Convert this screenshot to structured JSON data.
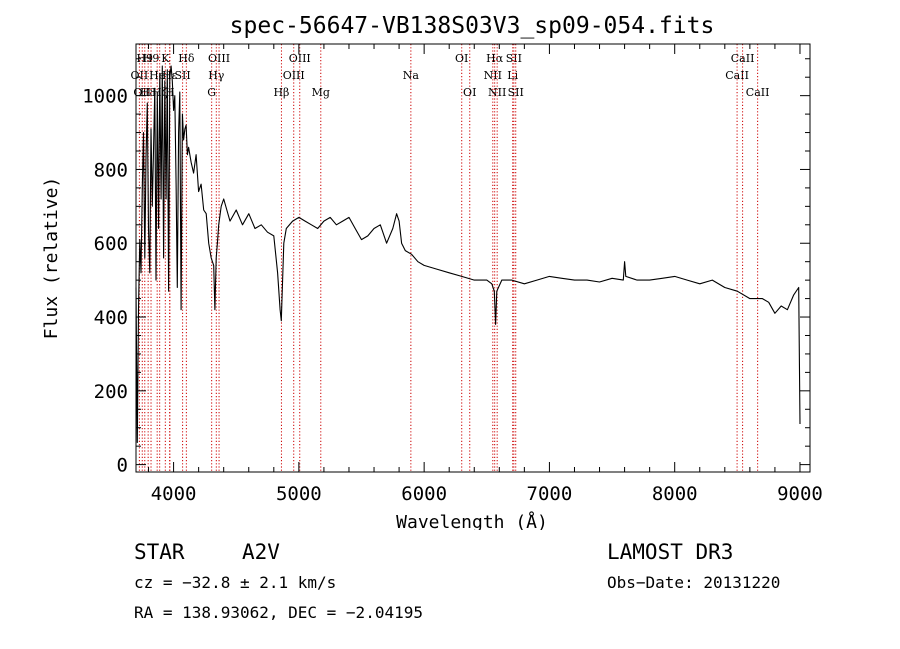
{
  "chart_data": {
    "type": "line",
    "title": "spec-56647-VB138S03V3_sp09-054.fits",
    "xlabel": "Wavelength (Å)",
    "ylabel": "Flux (relative)",
    "xlim": [
      3700,
      9080
    ],
    "ylim": [
      -20,
      1140
    ],
    "xticks": [
      4000,
      5000,
      6000,
      7000,
      8000,
      9000
    ],
    "yticks": [
      0,
      200,
      400,
      600,
      800,
      1000
    ],
    "series": [
      {
        "name": "flux",
        "x": [
          3700,
          3710,
          3720,
          3730,
          3740,
          3750,
          3760,
          3770,
          3780,
          3790,
          3800,
          3810,
          3820,
          3830,
          3840,
          3850,
          3860,
          3870,
          3880,
          3890,
          3900,
          3910,
          3920,
          3930,
          3940,
          3950,
          3960,
          3970,
          3980,
          3990,
          4000,
          4010,
          4020,
          4030,
          4040,
          4050,
          4060,
          4070,
          4080,
          4090,
          4100,
          4110,
          4120,
          4140,
          4160,
          4180,
          4200,
          4220,
          4240,
          4260,
          4280,
          4300,
          4320,
          4330,
          4340,
          4350,
          4360,
          4380,
          4400,
          4450,
          4500,
          4550,
          4600,
          4650,
          4700,
          4750,
          4800,
          4830,
          4850,
          4860,
          4870,
          4880,
          4900,
          4950,
          5000,
          5050,
          5100,
          5150,
          5200,
          5250,
          5300,
          5350,
          5400,
          5450,
          5500,
          5550,
          5600,
          5650,
          5700,
          5750,
          5780,
          5800,
          5820,
          5850,
          5900,
          5950,
          6000,
          6100,
          6200,
          6300,
          6400,
          6500,
          6540,
          6560,
          6570,
          6580,
          6620,
          6700,
          6800,
          6900,
          7000,
          7100,
          7200,
          7300,
          7400,
          7500,
          7590,
          7600,
          7610,
          7700,
          7800,
          7900,
          8000,
          8100,
          8200,
          8300,
          8400,
          8500,
          8600,
          8700,
          8750,
          8800,
          8850,
          8900,
          8950,
          8990,
          9000
        ],
        "y": [
          480,
          60,
          420,
          610,
          520,
          750,
          900,
          560,
          830,
          980,
          640,
          520,
          910,
          700,
          850,
          1020,
          500,
          1010,
          640,
          1060,
          720,
          1080,
          560,
          1040,
          720,
          1070,
          470,
          1050,
          1080,
          1040,
          960,
          1000,
          760,
          480,
          900,
          1010,
          420,
          950,
          880,
          910,
          920,
          840,
          860,
          820,
          790,
          840,
          740,
          760,
          690,
          680,
          600,
          560,
          540,
          420,
          560,
          600,
          650,
          700,
          720,
          660,
          690,
          650,
          680,
          640,
          650,
          630,
          620,
          520,
          420,
          390,
          500,
          600,
          640,
          660,
          670,
          660,
          650,
          640,
          660,
          670,
          650,
          660,
          670,
          640,
          610,
          620,
          640,
          650,
          600,
          640,
          680,
          660,
          600,
          580,
          570,
          550,
          540,
          530,
          520,
          510,
          500,
          500,
          490,
          470,
          380,
          470,
          500,
          500,
          490,
          500,
          510,
          505,
          500,
          500,
          495,
          505,
          500,
          550,
          510,
          500,
          500,
          505,
          510,
          500,
          490,
          500,
          480,
          470,
          450,
          450,
          440,
          410,
          430,
          420,
          460,
          480,
          110
        ]
      }
    ],
    "lines": [
      {
        "w": 3727,
        "label": "OII",
        "row": 2
      },
      {
        "w": 3750,
        "label": "OII",
        "row": 3
      },
      {
        "w": 3770,
        "label": "H9",
        "row": 1
      },
      {
        "w": 3797,
        "label": "H8",
        "row": 3
      },
      {
        "w": 3820,
        "label": "H9",
        "row": 1
      },
      {
        "w": 3869,
        "label": "He",
        "row": 2
      },
      {
        "w": 3889,
        "label": "Hζ",
        "row": 3
      },
      {
        "w": 3934,
        "label": "K",
        "row": 1
      },
      {
        "w": 3969,
        "label": "H",
        "row": 3
      },
      {
        "w": 3970,
        "label": "Hε",
        "row": 2
      },
      {
        "w": 4072,
        "label": "SII",
        "row": 2
      },
      {
        "w": 4102,
        "label": "Hδ",
        "row": 1
      },
      {
        "w": 4304,
        "label": "G",
        "row": 3
      },
      {
        "w": 4341,
        "label": "Hγ",
        "row": 2
      },
      {
        "w": 4363,
        "label": "OIII",
        "row": 1
      },
      {
        "w": 4861,
        "label": "Hβ",
        "row": 3
      },
      {
        "w": 4959,
        "label": "OIII",
        "row": 2
      },
      {
        "w": 5007,
        "label": "OIII",
        "row": 1
      },
      {
        "w": 5175,
        "label": "Mg",
        "row": 3
      },
      {
        "w": 5894,
        "label": "Na",
        "row": 2
      },
      {
        "w": 6300,
        "label": "OI",
        "row": 1
      },
      {
        "w": 6364,
        "label": "OI",
        "row": 3
      },
      {
        "w": 6548,
        "label": "NII",
        "row": 2
      },
      {
        "w": 6563,
        "label": "Hα",
        "row": 1
      },
      {
        "w": 6583,
        "label": "NII",
        "row": 3
      },
      {
        "w": 6707,
        "label": "Li",
        "row": 2
      },
      {
        "w": 6716,
        "label": "SII",
        "row": 1
      },
      {
        "w": 6731,
        "label": "SII",
        "row": 3
      },
      {
        "w": 8498,
        "label": "CaII",
        "row": 2
      },
      {
        "w": 8542,
        "label": "CaII",
        "row": 1
      },
      {
        "w": 8662,
        "label": "CaII",
        "row": 3
      }
    ]
  },
  "info": {
    "object_class": "STAR",
    "subclass": "A2V",
    "survey": "LAMOST DR3",
    "cz": "cz = −32.8 ± 2.1 km/s",
    "obs_date": "Obs−Date: 20131220",
    "coords": "RA = 138.93062, DEC =  −2.04195"
  }
}
